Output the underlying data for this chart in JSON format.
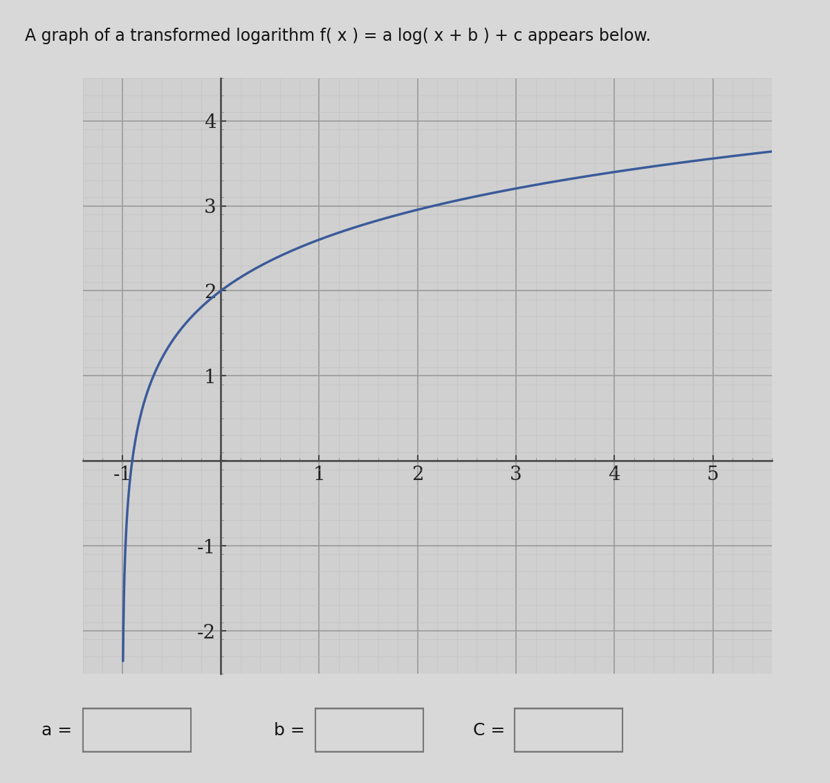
{
  "title": "A graph of a transformed logarithm f( x ) = a log( x + b ) + c appears below.",
  "a": 2,
  "b": 1,
  "c": 2,
  "xlim": [
    -1.4,
    5.6
  ],
  "ylim": [
    -2.5,
    4.5
  ],
  "xticks": [
    -1,
    0,
    1,
    2,
    3,
    4,
    5
  ],
  "yticks": [
    -2,
    -1,
    0,
    1,
    2,
    3,
    4
  ],
  "curve_color": "#3a5a9a",
  "curve_linewidth": 2.5,
  "major_grid_color": "#999999",
  "minor_grid_color": "#c0c0c0",
  "bg_color": "#d0d0d0",
  "fig_bg_color": "#d8d8d8",
  "axis_color": "#444444",
  "tick_fontsize": 20,
  "title_fontsize": 17
}
